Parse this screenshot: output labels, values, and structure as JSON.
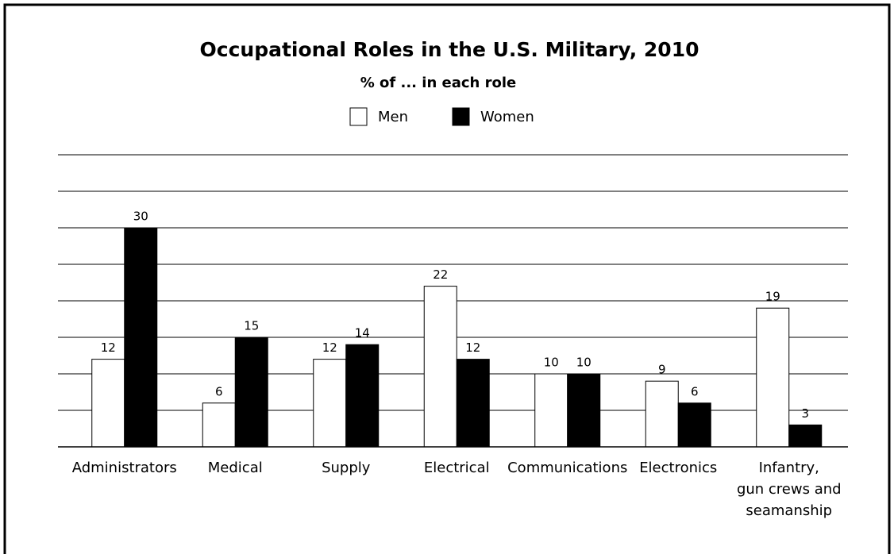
{
  "chart_data": {
    "type": "bar",
    "title": "Occupational Roles in the U.S. Military, 2010",
    "subtitle": "% of ... in each role",
    "categories": [
      "Administrators",
      "Medical",
      "Supply",
      "Electrical",
      "Communications",
      "Electronics",
      "Infantry,\ngun crews and\nseamanship"
    ],
    "series": [
      {
        "name": "Men",
        "color": "#ffffff",
        "values": [
          12,
          6,
          12,
          22,
          10,
          9,
          19
        ]
      },
      {
        "name": "Women",
        "color": "#000000",
        "values": [
          30,
          15,
          14,
          12,
          10,
          6,
          3
        ]
      }
    ],
    "ylim": [
      0,
      40
    ],
    "yticks": [
      0,
      5,
      10,
      15,
      20,
      25,
      30,
      35,
      40
    ],
    "grid": true,
    "legend": "top"
  }
}
